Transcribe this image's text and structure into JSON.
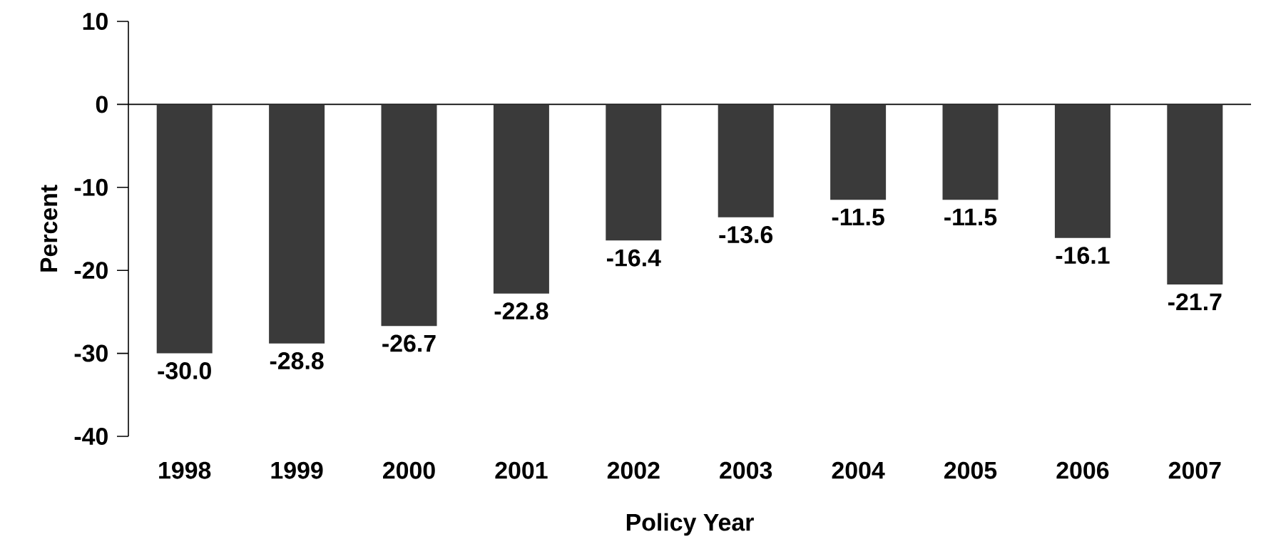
{
  "chart_data": {
    "type": "bar",
    "xlabel": "Policy Year",
    "ylabel": "Percent",
    "categories": [
      "1998",
      "1999",
      "2000",
      "2001",
      "2002",
      "2003",
      "2004",
      "2005",
      "2006",
      "2007"
    ],
    "values": [
      -30.0,
      -28.8,
      -26.7,
      -22.8,
      -16.4,
      -13.6,
      -11.5,
      -11.5,
      -16.1,
      -21.7
    ],
    "value_labels": [
      "-30.0",
      "-28.8",
      "-26.7",
      "-22.8",
      "-16.4",
      "-13.6",
      "-11.5",
      "-11.5",
      "-16.1",
      "-21.7"
    ],
    "color": "#3a3a3a",
    "ylim": [
      -40,
      10
    ],
    "yticks": [
      -40,
      -30,
      -20,
      -10,
      0,
      10
    ]
  }
}
